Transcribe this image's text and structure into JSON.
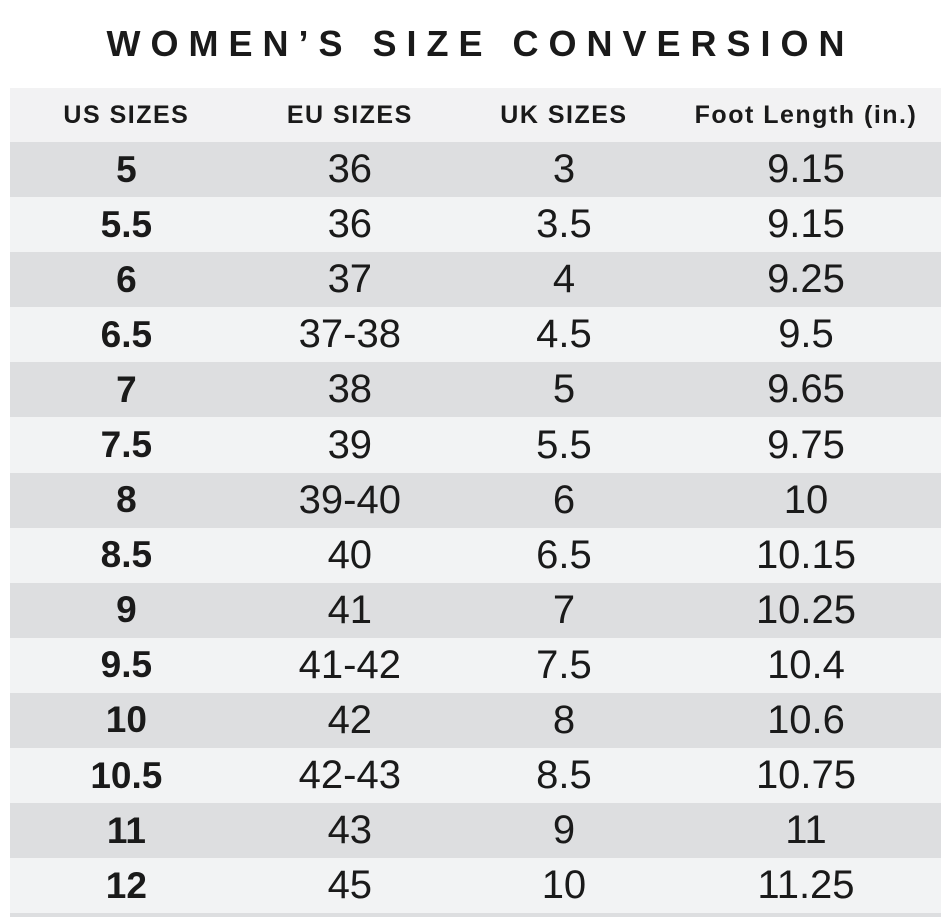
{
  "title": "WOMEN’S SIZE CONVERSION",
  "colors": {
    "background": "#ffffff",
    "header_bg": "#f2f2f3",
    "row_dark": "#dddee0",
    "row_light": "#f2f3f4",
    "text": "#1a1a1a"
  },
  "chart_data": {
    "type": "table",
    "title": "WOMEN’S SIZE CONVERSION",
    "columns": [
      "US SIZES",
      "EU SIZES",
      "UK SIZES",
      "Foot Length (in.)"
    ],
    "rows": [
      [
        "5",
        "36",
        "3",
        "9.15"
      ],
      [
        "5.5",
        "36",
        "3.5",
        "9.15"
      ],
      [
        "6",
        "37",
        "4",
        "9.25"
      ],
      [
        "6.5",
        "37-38",
        "4.5",
        "9.5"
      ],
      [
        "7",
        "38",
        "5",
        "9.65"
      ],
      [
        "7.5",
        "39",
        "5.5",
        "9.75"
      ],
      [
        "8",
        "39-40",
        "6",
        "10"
      ],
      [
        "8.5",
        "40",
        "6.5",
        "10.15"
      ],
      [
        "9",
        "41",
        "7",
        "10.25"
      ],
      [
        "9.5",
        "41-42",
        "7.5",
        "10.4"
      ],
      [
        "10",
        "42",
        "8",
        "10.6"
      ],
      [
        "10.5",
        "42-43",
        "8.5",
        "10.75"
      ],
      [
        "11",
        "43",
        "9",
        "11"
      ],
      [
        "12",
        "45",
        "10",
        "11.25"
      ]
    ],
    "layout": {
      "striping": "alternating rows, first data row shaded dark",
      "us_column_bold": true
    }
  }
}
